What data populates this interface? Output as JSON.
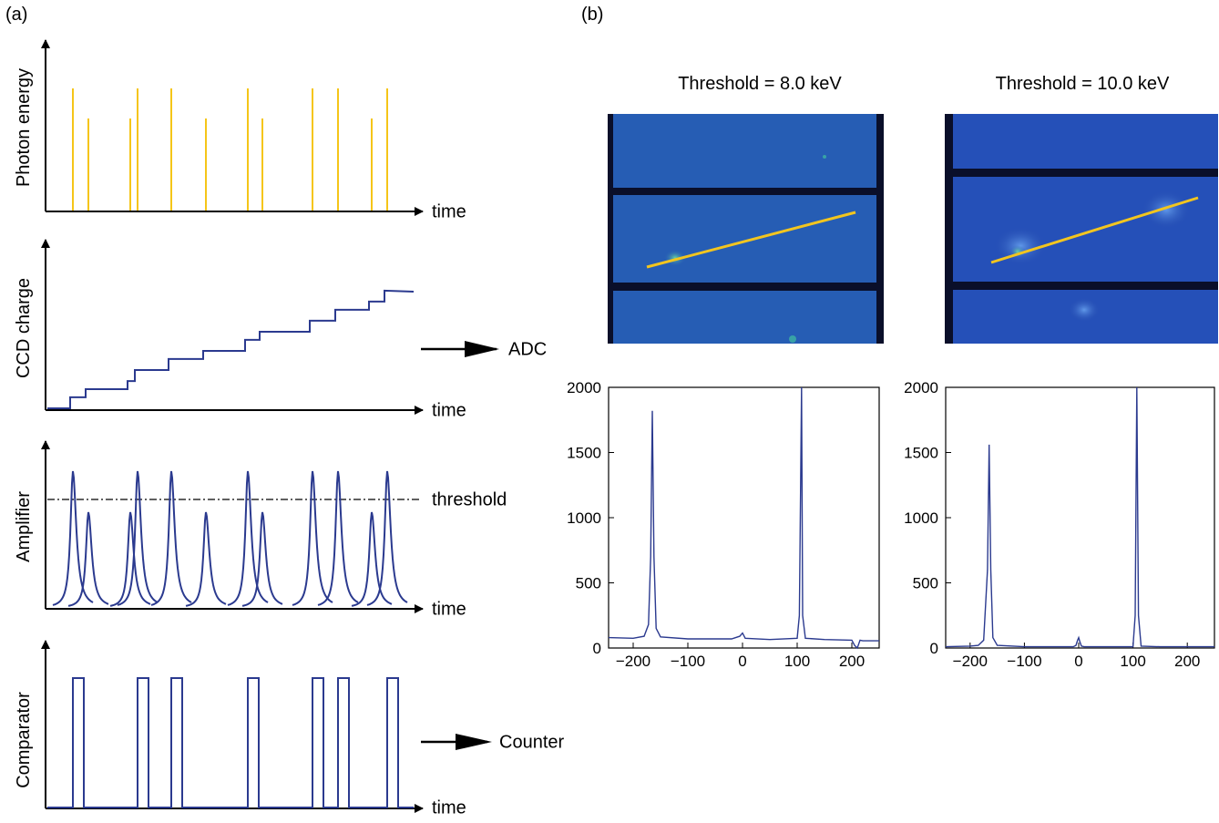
{
  "panel_a": {
    "label": "(a)",
    "rows": [
      {
        "ylabel": "Photon energy",
        "xlabel": "time"
      },
      {
        "ylabel": "CCD charge",
        "xlabel": "time",
        "output": "ADC"
      },
      {
        "ylabel": "Amplifier",
        "xlabel": "time",
        "threshold_label": "threshold"
      },
      {
        "ylabel": "Comparator",
        "xlabel": "time",
        "output": "Counter"
      }
    ],
    "pulses": {
      "times": [
        80,
        97,
        143,
        151,
        188,
        226,
        272,
        288,
        343,
        371,
        408,
        425
      ],
      "energy_level": [
        "high",
        "low",
        "low",
        "high",
        "high",
        "low",
        "high",
        "low",
        "high",
        "high",
        "low",
        "high"
      ]
    },
    "colors": {
      "photon": "#F5C518",
      "signal": "#2B3A8F",
      "axis": "#000000"
    }
  },
  "panel_b": {
    "label": "(b)",
    "images": [
      {
        "title": "Threshold = 8.0 keV"
      },
      {
        "title": "Threshold = 10.0 keV"
      }
    ],
    "colors": {
      "detector": "#2A62B8",
      "gap": "#0a0f2a",
      "line": "#F2C51F",
      "plot": "#2B3A8F"
    }
  },
  "chart_data": [
    {
      "type": "line",
      "title": "",
      "xlabel": "",
      "ylabel": "",
      "xlim": [
        -245,
        250
      ],
      "ylim": [
        0,
        2000
      ],
      "xticks": [
        -200,
        -100,
        0,
        100,
        200
      ],
      "xtick_labels": [
        "−200",
        "−100",
        "0",
        "100",
        "200"
      ],
      "yticks": [
        0,
        500,
        1000,
        1500,
        2000
      ],
      "ytick_labels": [
        "0",
        "500",
        "1000",
        "1500",
        "2000"
      ],
      "grid": false,
      "series": [
        {
          "x": [
            -245,
            -200,
            -180,
            -172,
            -168,
            -165,
            -162,
            -158,
            -150,
            -100,
            -20,
            -5,
            0,
            5,
            50,
            100,
            104,
            108,
            110,
            115,
            150,
            200,
            205,
            210,
            215,
            220,
            250
          ],
          "y": [
            80,
            75,
            90,
            180,
            700,
            1820,
            700,
            150,
            85,
            70,
            70,
            90,
            115,
            75,
            65,
            75,
            250,
            2000,
            250,
            75,
            65,
            60,
            20,
            0,
            60,
            55,
            55
          ]
        }
      ]
    },
    {
      "type": "line",
      "title": "",
      "xlabel": "",
      "ylabel": "",
      "xlim": [
        -245,
        250
      ],
      "ylim": [
        0,
        2000
      ],
      "xticks": [
        -200,
        -100,
        0,
        100,
        200
      ],
      "xtick_labels": [
        "−200",
        "−100",
        "0",
        "100",
        "200"
      ],
      "yticks": [
        0,
        500,
        1000,
        1500,
        2000
      ],
      "ytick_labels": [
        "0",
        "500",
        "1000",
        "1500",
        "2000"
      ],
      "grid": false,
      "series": [
        {
          "x": [
            -245,
            -200,
            -185,
            -175,
            -168,
            -165,
            -162,
            -158,
            -150,
            -100,
            -10,
            -5,
            -2,
            0,
            2,
            5,
            10,
            100,
            104,
            107,
            110,
            115,
            150,
            200,
            250
          ],
          "y": [
            10,
            15,
            20,
            60,
            600,
            1560,
            600,
            80,
            20,
            10,
            10,
            20,
            60,
            80,
            50,
            15,
            10,
            10,
            250,
            2000,
            250,
            15,
            10,
            10,
            10
          ]
        }
      ]
    }
  ]
}
